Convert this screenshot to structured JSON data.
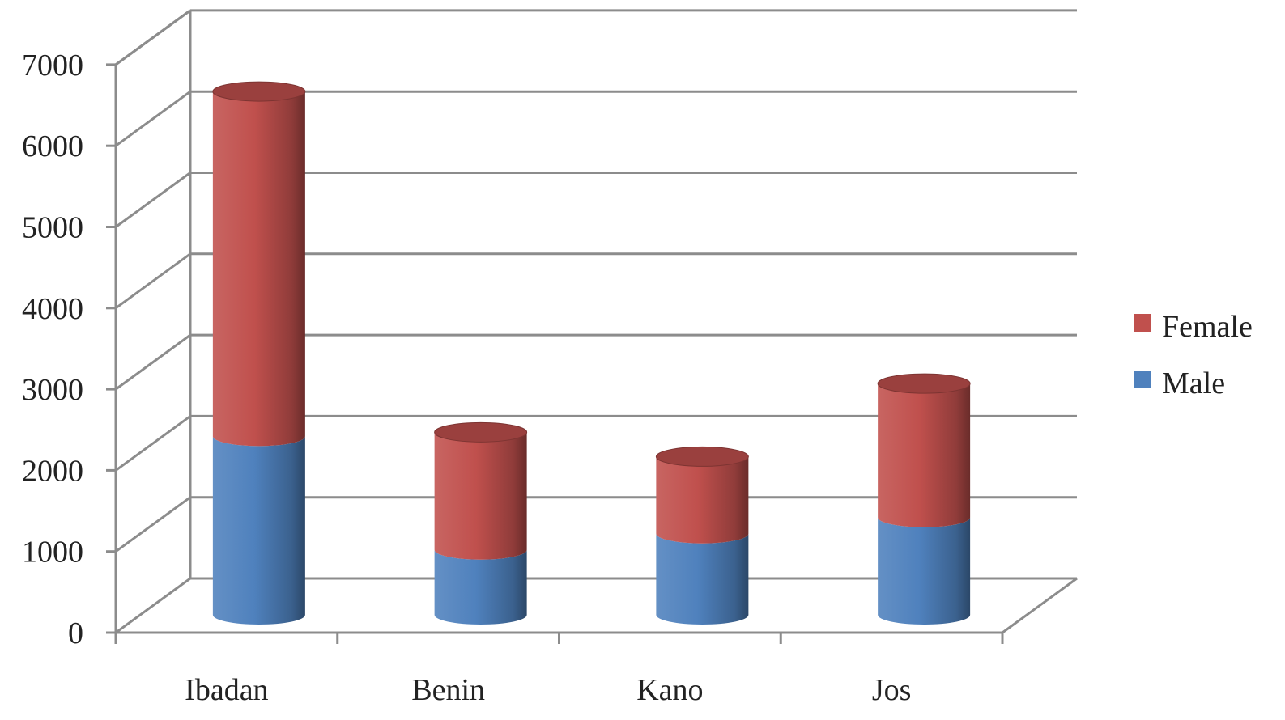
{
  "chart_data": {
    "type": "bar",
    "stacked": true,
    "three_d": true,
    "categories": [
      "Ibadan",
      "Benin",
      "Kano",
      "Jos"
    ],
    "series": [
      {
        "name": "Male",
        "values": [
          2200,
          800,
          1000,
          1200
        ],
        "color": "#4f81bd"
      },
      {
        "name": "Female",
        "values": [
          4250,
          1450,
          950,
          1650
        ],
        "color": "#c0504d"
      }
    ],
    "ylim": [
      0,
      7000
    ],
    "yticks": [
      "0",
      "1000",
      "2000",
      "3000",
      "4000",
      "5000",
      "6000",
      "7000"
    ],
    "grid": true,
    "legend": {
      "placement": "right",
      "order": [
        "Female",
        "Male"
      ]
    },
    "title": "",
    "xlabel": "",
    "ylabel": ""
  }
}
